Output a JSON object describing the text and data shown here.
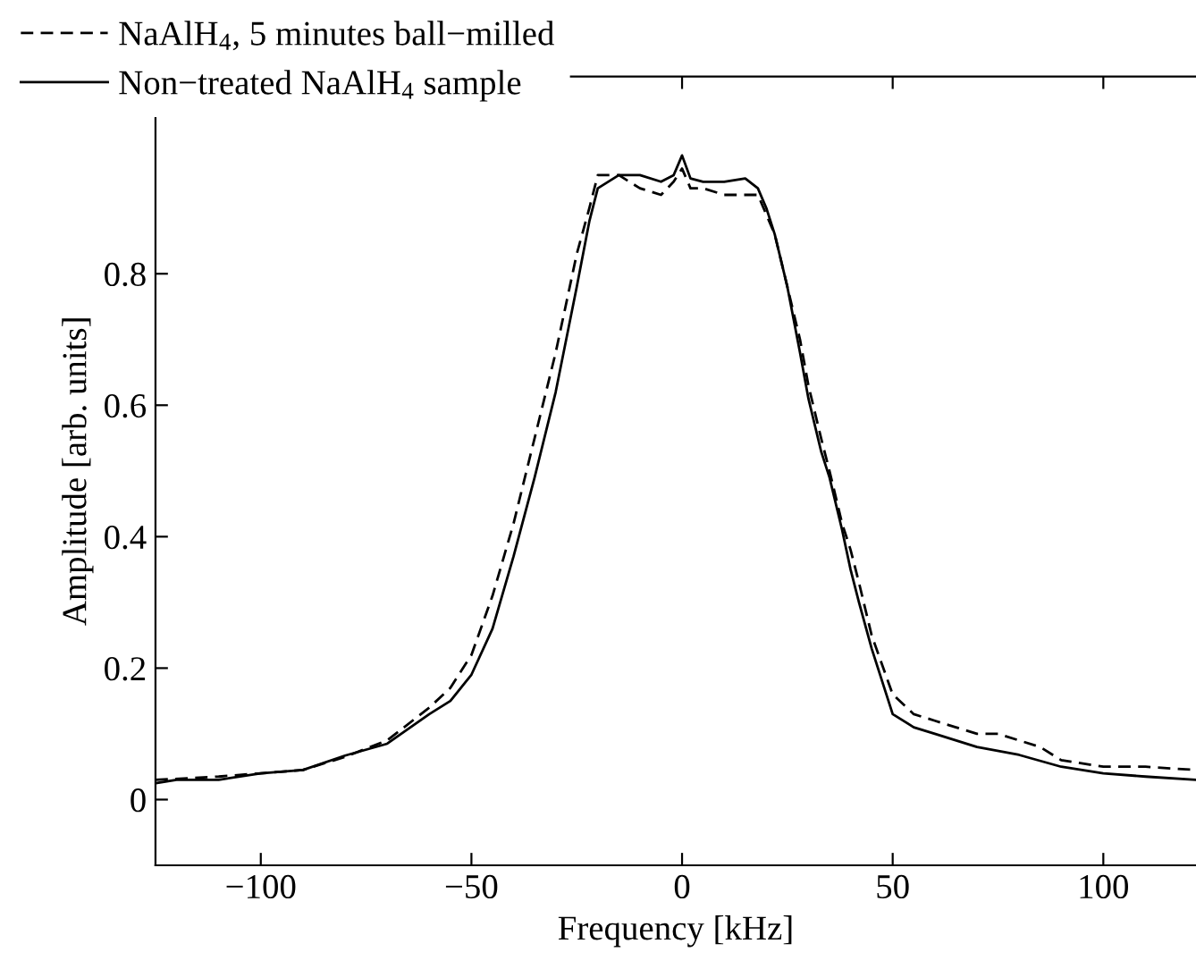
{
  "chart_data": {
    "type": "line",
    "xlabel": "Frequency [kHz]",
    "ylabel": "Amplitude [arb. units]",
    "xlim": [
      -125,
      122
    ],
    "ylim": [
      -0.1,
      1.1
    ],
    "xticks": [
      {
        "value": -100,
        "label": "−100"
      },
      {
        "value": -50,
        "label": "−50"
      },
      0,
      50,
      100
    ],
    "yticks": [
      0,
      0.2,
      0.4,
      0.6,
      0.8
    ],
    "grid": false,
    "legend": "top left",
    "marker": "none",
    "series": [
      {
        "name": "NaAlH$_{4}$, 5 minutes ball−milled",
        "color": "#000000",
        "line_style": "dashed",
        "x": [
          -125,
          -110,
          -100,
          -90,
          -80,
          -70,
          -60,
          -55,
          -50,
          -45,
          -40,
          -35,
          -30,
          -25,
          -22,
          -20,
          -15,
          -10,
          -5,
          -2,
          0,
          2,
          5,
          10,
          15,
          18,
          20,
          22,
          25,
          28,
          30,
          33,
          35,
          38,
          40,
          42,
          45,
          50,
          55,
          60,
          65,
          70,
          75,
          80,
          85,
          90,
          100,
          110,
          122
        ],
        "values": [
          0.03,
          0.035,
          0.04,
          0.045,
          0.065,
          0.09,
          0.14,
          0.17,
          0.22,
          0.31,
          0.42,
          0.55,
          0.68,
          0.83,
          0.9,
          0.95,
          0.95,
          0.93,
          0.92,
          0.94,
          0.96,
          0.93,
          0.93,
          0.92,
          0.92,
          0.92,
          0.89,
          0.86,
          0.78,
          0.7,
          0.63,
          0.55,
          0.5,
          0.42,
          0.38,
          0.33,
          0.25,
          0.16,
          0.13,
          0.12,
          0.11,
          0.1,
          0.1,
          0.09,
          0.08,
          0.06,
          0.05,
          0.05,
          0.045
        ]
      },
      {
        "name": "Non−treated NaAlH$_{4}$ sample",
        "color": "#000000",
        "line_style": "solid",
        "x": [
          -125,
          -120,
          -110,
          -100,
          -90,
          -80,
          -70,
          -60,
          -55,
          -50,
          -45,
          -40,
          -35,
          -30,
          -25,
          -22,
          -20,
          -15,
          -10,
          -5,
          -2,
          0,
          2,
          5,
          10,
          15,
          18,
          20,
          22,
          25,
          28,
          30,
          33,
          35,
          38,
          40,
          42,
          45,
          50,
          55,
          60,
          70,
          80,
          90,
          100,
          110,
          122
        ],
        "values": [
          0.025,
          0.03,
          0.03,
          0.04,
          0.045,
          0.067,
          0.085,
          0.13,
          0.15,
          0.19,
          0.26,
          0.37,
          0.49,
          0.62,
          0.78,
          0.88,
          0.93,
          0.95,
          0.95,
          0.94,
          0.95,
          0.98,
          0.945,
          0.94,
          0.94,
          0.945,
          0.93,
          0.9,
          0.86,
          0.78,
          0.68,
          0.61,
          0.53,
          0.49,
          0.41,
          0.35,
          0.3,
          0.23,
          0.13,
          0.11,
          0.1,
          0.08,
          0.068,
          0.05,
          0.04,
          0.035,
          0.03
        ]
      }
    ]
  }
}
